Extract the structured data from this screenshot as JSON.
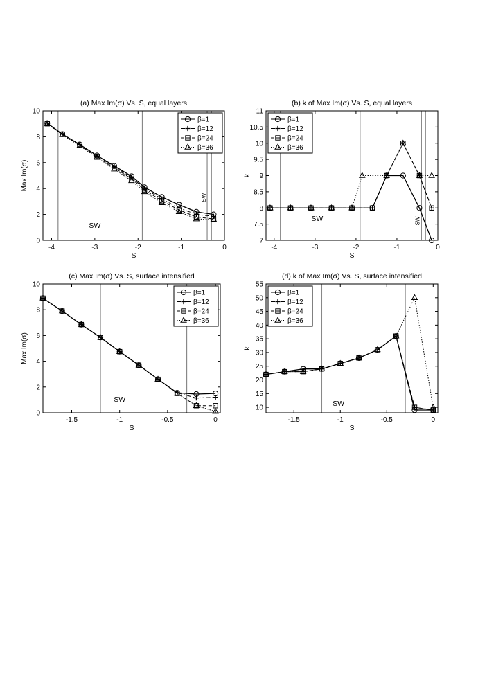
{
  "chart_data": [
    {
      "type": "line",
      "title": "(a) Max Im(σ) Vs. S, equal layers",
      "xlabel": "S",
      "ylabel": "Max Im(σ)",
      "xlim": [
        -4.2,
        0
      ],
      "ylim": [
        0,
        10
      ],
      "xticks": [
        -4,
        -3,
        -2,
        -1,
        0
      ],
      "yticks": [
        0,
        2,
        4,
        6,
        8,
        10
      ],
      "vlines": [
        -3.85,
        -1.9,
        -0.4,
        -0.3
      ],
      "annotations": [
        {
          "text": "SW",
          "x": -3.0,
          "y": 0.95,
          "rotate": 0
        },
        {
          "text": "SW",
          "x": -0.43,
          "y": 3.3,
          "rotate": -90
        }
      ],
      "legend": "top-right",
      "grid": false,
      "series": [
        {
          "name": "β=1",
          "marker": "circle",
          "dash": "solid",
          "x": [
            -4.1,
            -3.75,
            -3.35,
            -2.95,
            -2.55,
            -2.15,
            -1.85,
            -1.45,
            -1.05,
            -0.65,
            -0.25
          ],
          "y": [
            9.05,
            8.2,
            7.4,
            6.55,
            5.75,
            4.95,
            4.1,
            3.35,
            2.75,
            2.2,
            2.0
          ]
        },
        {
          "name": "β=12",
          "marker": "plus",
          "dash": "dashdot",
          "x": [
            -4.1,
            -3.75,
            -3.35,
            -2.95,
            -2.55,
            -2.15,
            -1.85,
            -1.45,
            -1.05,
            -0.65,
            -0.25
          ],
          "y": [
            9.05,
            8.2,
            7.4,
            6.5,
            5.7,
            4.85,
            4.0,
            3.2,
            2.5,
            2.0,
            1.85
          ]
        },
        {
          "name": "β=24",
          "marker": "square",
          "dash": "dashed",
          "x": [
            -4.1,
            -3.75,
            -3.35,
            -2.95,
            -2.55,
            -2.15,
            -1.85,
            -1.45,
            -1.05,
            -0.65,
            -0.25
          ],
          "y": [
            9.0,
            8.2,
            7.35,
            6.45,
            5.6,
            4.75,
            3.9,
            3.05,
            2.35,
            1.8,
            1.65
          ]
        },
        {
          "name": "β=36",
          "marker": "triangle",
          "dash": "dotted",
          "x": [
            -4.1,
            -3.75,
            -3.35,
            -2.95,
            -2.55,
            -2.15,
            -1.85,
            -1.45,
            -1.05,
            -0.65,
            -0.25
          ],
          "y": [
            9.0,
            8.15,
            7.3,
            6.4,
            5.5,
            4.6,
            3.75,
            2.9,
            2.2,
            1.65,
            1.6
          ]
        }
      ]
    },
    {
      "type": "line",
      "title": "(b) k of Max Im(σ) Vs. S, equal layers",
      "xlabel": "S",
      "ylabel": "k",
      "xlim": [
        -4.2,
        0
      ],
      "ylim": [
        7,
        11
      ],
      "xticks": [
        -4,
        -3,
        -2,
        -1,
        0
      ],
      "yticks": [
        7,
        7.5,
        8,
        8.5,
        9,
        9.5,
        10,
        10.5,
        11
      ],
      "vlines": [
        -3.85,
        -1.9,
        -0.4,
        -0.3
      ],
      "annotations": [
        {
          "text": "SW",
          "x": -2.95,
          "y": 7.6,
          "rotate": 0
        },
        {
          "text": "SW",
          "x": -0.45,
          "y": 7.6,
          "rotate": -90
        }
      ],
      "legend": "top-left",
      "grid": false,
      "series": [
        {
          "name": "β=1",
          "marker": "circle",
          "dash": "solid",
          "x": [
            -4.1,
            -3.6,
            -3.1,
            -2.6,
            -2.1,
            -1.6,
            -1.25,
            -0.85,
            -0.45,
            -0.15
          ],
          "y": [
            8,
            8,
            8,
            8,
            8,
            8,
            9,
            9,
            8,
            7
          ]
        },
        {
          "name": "β=12",
          "marker": "plus",
          "dash": "dashdot",
          "x": [
            -4.1,
            -3.6,
            -3.1,
            -2.6,
            -2.1,
            -1.6,
            -1.25,
            -0.85,
            -0.45,
            -0.15
          ],
          "y": [
            8,
            8,
            8,
            8,
            8,
            8,
            9,
            10,
            9,
            8
          ]
        },
        {
          "name": "β=24",
          "marker": "square",
          "dash": "dashed",
          "x": [
            -4.1,
            -3.6,
            -3.1,
            -2.6,
            -2.1,
            -1.6,
            -1.25,
            -0.85,
            -0.45,
            -0.15
          ],
          "y": [
            8,
            8,
            8,
            8,
            8,
            8,
            9,
            10,
            9,
            8
          ]
        },
        {
          "name": "β=36",
          "marker": "triangle",
          "dash": "dotted",
          "x": [
            -4.1,
            -3.6,
            -3.1,
            -2.6,
            -2.1,
            -1.85,
            -1.25,
            -0.85,
            -0.45,
            -0.15
          ],
          "y": [
            8,
            8,
            8,
            8,
            8,
            9,
            9,
            10,
            9,
            9
          ]
        }
      ]
    },
    {
      "type": "line",
      "title": "(c) Max Im(σ) Vs. S, surface intensified",
      "xlabel": "S",
      "ylabel": "Max Im(σ)",
      "xlim": [
        -1.8,
        0.05
      ],
      "ylim": [
        0,
        10
      ],
      "xticks": [
        -1.5,
        -1,
        -0.5,
        0
      ],
      "xticklabels": [
        "-1.5",
        "-1",
        "-0.5",
        "0"
      ],
      "yticks": [
        0,
        2,
        4,
        6,
        8,
        10
      ],
      "vlines": [
        -1.2,
        -0.3
      ],
      "annotations": [
        {
          "text": "SW",
          "x": -1.0,
          "y": 0.85,
          "rotate": 0
        }
      ],
      "legend": "top-right",
      "grid": false,
      "series": [
        {
          "name": "β=1",
          "marker": "circle",
          "dash": "solid",
          "x": [
            -1.8,
            -1.6,
            -1.4,
            -1.2,
            -1.0,
            -0.8,
            -0.6,
            -0.4,
            -0.2,
            0.0
          ],
          "y": [
            8.9,
            7.9,
            6.85,
            5.85,
            4.75,
            3.7,
            2.6,
            1.55,
            1.45,
            1.5
          ]
        },
        {
          "name": "β=12",
          "marker": "plus",
          "dash": "dashdot",
          "x": [
            -1.8,
            -1.6,
            -1.4,
            -1.2,
            -1.0,
            -0.8,
            -0.6,
            -0.4,
            -0.2,
            0.0
          ],
          "y": [
            8.9,
            7.9,
            6.85,
            5.85,
            4.75,
            3.7,
            2.6,
            1.55,
            1.15,
            1.2
          ]
        },
        {
          "name": "β=24",
          "marker": "square",
          "dash": "dashed",
          "x": [
            -1.8,
            -1.6,
            -1.4,
            -1.2,
            -1.0,
            -0.8,
            -0.6,
            -0.4,
            -0.2,
            0.0
          ],
          "y": [
            8.9,
            7.9,
            6.85,
            5.85,
            4.75,
            3.7,
            2.6,
            1.5,
            0.55,
            0.55
          ]
        },
        {
          "name": "β=36",
          "marker": "triangle",
          "dash": "dotted",
          "x": [
            -1.8,
            -1.6,
            -1.4,
            -1.2,
            -1.0,
            -0.8,
            -0.6,
            -0.4,
            -0.2,
            0.0
          ],
          "y": [
            8.9,
            7.9,
            6.85,
            5.85,
            4.75,
            3.7,
            2.6,
            1.5,
            0.55,
            0.1
          ]
        }
      ]
    },
    {
      "type": "line",
      "title": "(d) k of Max Im(σ) Vs. S, surface intensified",
      "xlabel": "S",
      "ylabel": "k",
      "xlim": [
        -1.8,
        0.05
      ],
      "ylim": [
        8,
        55
      ],
      "xticks": [
        -1.5,
        -1,
        -0.5,
        0
      ],
      "xticklabels": [
        "-1.5",
        "-1",
        "-0.5",
        "0"
      ],
      "yticks": [
        10,
        15,
        20,
        25,
        30,
        35,
        40,
        45,
        50,
        55
      ],
      "vlines": [
        -1.2,
        -0.3
      ],
      "annotations": [
        {
          "text": "SW",
          "x": -1.02,
          "y": 10.5,
          "rotate": 0
        }
      ],
      "legend": "top-left",
      "grid": false,
      "series": [
        {
          "name": "β=1",
          "marker": "circle",
          "dash": "solid",
          "x": [
            -1.8,
            -1.6,
            -1.4,
            -1.2,
            -1.0,
            -0.8,
            -0.6,
            -0.4,
            -0.2,
            0.0
          ],
          "y": [
            22,
            23,
            24,
            24,
            26,
            28,
            31,
            36,
            9,
            9
          ]
        },
        {
          "name": "β=12",
          "marker": "plus",
          "dash": "dashdot",
          "x": [
            -1.8,
            -1.6,
            -1.4,
            -1.2,
            -1.0,
            -0.8,
            -0.6,
            -0.4,
            -0.2,
            0.0
          ],
          "y": [
            22,
            23,
            23,
            24,
            26,
            28,
            31,
            36,
            10,
            9
          ]
        },
        {
          "name": "β=24",
          "marker": "square",
          "dash": "dashed",
          "x": [
            -1.8,
            -1.6,
            -1.4,
            -1.2,
            -1.0,
            -0.8,
            -0.6,
            -0.4,
            -0.2,
            0.0
          ],
          "y": [
            22,
            23,
            23,
            24,
            26,
            28,
            31,
            36,
            10,
            9
          ]
        },
        {
          "name": "β=36",
          "marker": "triangle",
          "dash": "dotted",
          "x": [
            -1.8,
            -1.6,
            -1.4,
            -1.2,
            -1.0,
            -0.8,
            -0.6,
            -0.4,
            -0.2,
            0.0
          ],
          "y": [
            22,
            23,
            23,
            24,
            26,
            28,
            31,
            36,
            50,
            10
          ]
        }
      ]
    }
  ]
}
